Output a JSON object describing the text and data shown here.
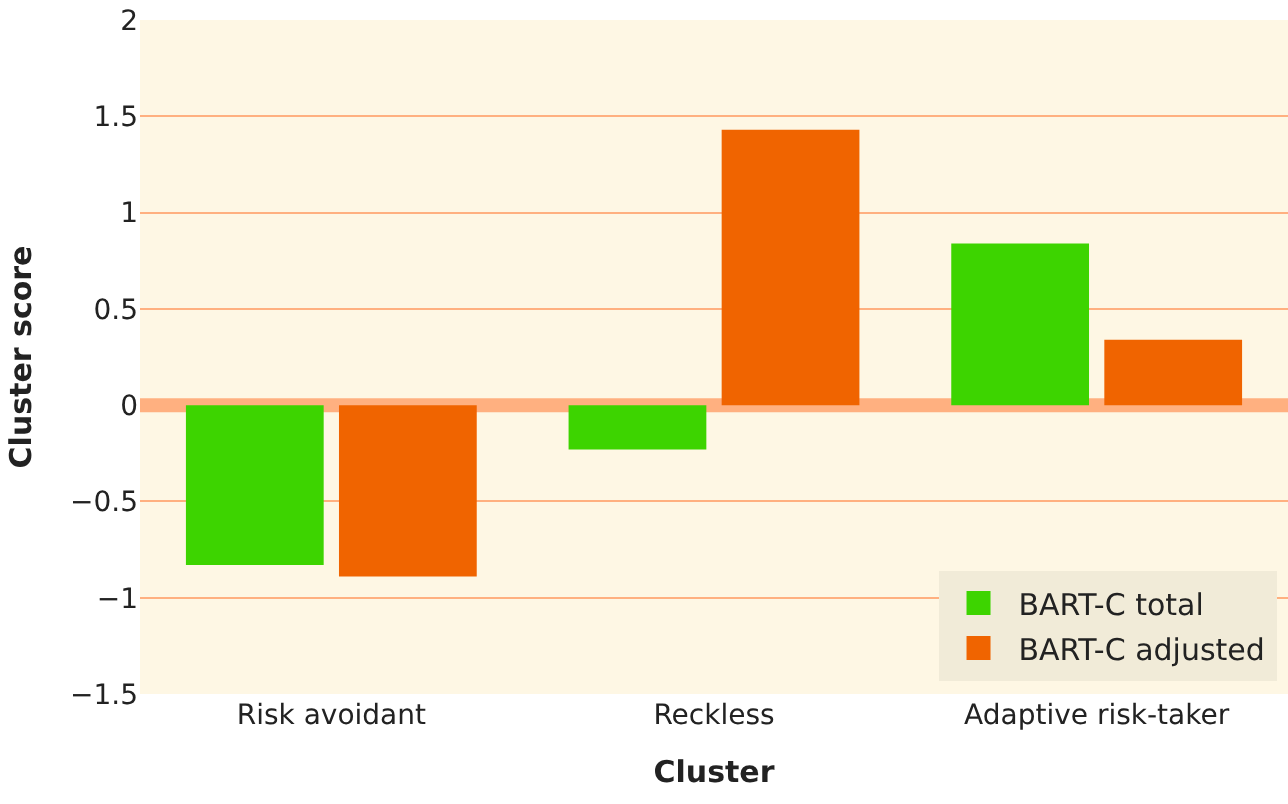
{
  "chart_data": {
    "type": "bar",
    "xlabel": "Cluster",
    "ylabel": "Cluster score",
    "categories": [
      "Risk avoidant",
      "Reckless",
      "Adaptive risk-taker"
    ],
    "series": [
      {
        "name": "BART-C total",
        "color": "#3dd400",
        "values": [
          -0.83,
          -0.23,
          0.84
        ]
      },
      {
        "name": "BART-C adjusted",
        "color": "#f06400",
        "values": [
          -0.89,
          1.43,
          0.34
        ]
      }
    ],
    "ylim": [
      -1.5,
      2
    ],
    "yticks": [
      {
        "value": -1.5,
        "label": "−1.5"
      },
      {
        "value": -1,
        "label": "−1"
      },
      {
        "value": -0.5,
        "label": "−0.5"
      },
      0,
      0.5,
      1,
      1.5,
      2
    ],
    "ref_lines": [
      {
        "axis": "y",
        "value": 0,
        "color": "#ffb080"
      }
    ],
    "grid": "y",
    "legend": "bottom right"
  }
}
